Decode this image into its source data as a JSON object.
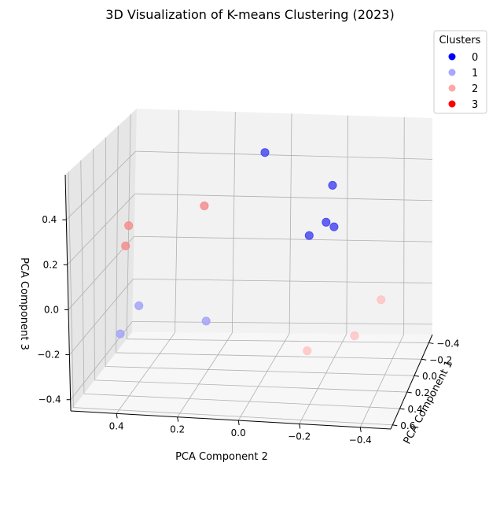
{
  "chart_data": {
    "type": "scatter",
    "title": "3D Visualization of K-means Clustering (2023)",
    "xlabel": "PCA Component 1",
    "ylabel": "PCA Component 2",
    "zlabel": "PCA Component 3",
    "x_ticks": [
      "−0.4",
      "−0.2",
      "0.0",
      "0.2",
      "0.4",
      "0.6"
    ],
    "y_ticks": [
      "−0.4",
      "−0.2",
      "0.0",
      "0.2",
      "0.4"
    ],
    "z_ticks": [
      "−0.4",
      "−0.2",
      "0.0",
      "0.2",
      "0.4"
    ],
    "xlim": [
      -0.5,
      0.65
    ],
    "ylim": [
      -0.5,
      0.55
    ],
    "zlim": [
      -0.45,
      0.6
    ],
    "grid": true,
    "legend": {
      "title": "Clusters",
      "position": "top-right",
      "entries": [
        {
          "label": "0",
          "color": "#0000ff"
        },
        {
          "label": "1",
          "color": "#a8a8ff"
        },
        {
          "label": "2",
          "color": "#ffa8a8"
        },
        {
          "label": "3",
          "color": "#ff0000"
        }
      ]
    },
    "series": [
      {
        "name": "0",
        "color": "#4a4af2",
        "points": [
          {
            "x": -0.25,
            "y": 0.05,
            "z": 0.5
          },
          {
            "x": -0.15,
            "y": -0.2,
            "z": 0.4
          },
          {
            "x": 0.0,
            "y": -0.2,
            "z": 0.28
          },
          {
            "x": -0.05,
            "y": -0.22,
            "z": 0.24
          },
          {
            "x": 0.05,
            "y": -0.15,
            "z": 0.23
          }
        ]
      },
      {
        "name": "1",
        "color": "#a4a4f8",
        "points": [
          {
            "x": 0.35,
            "y": 0.15,
            "z": -0.1
          },
          {
            "x": 0.2,
            "y": 0.4,
            "z": -0.1
          },
          {
            "x": 0.55,
            "y": 0.4,
            "z": -0.12
          }
        ]
      },
      {
        "name": "2",
        "color": "#ffc4c4",
        "points": [
          {
            "x": 0.4,
            "y": -0.35,
            "z": -0.1
          },
          {
            "x": 0.1,
            "y": -0.4,
            "z": -0.04
          },
          {
            "x": 0.45,
            "y": -0.2,
            "z": -0.17
          }
        ]
      },
      {
        "name": "3",
        "color": "#f58e8e",
        "points": [
          {
            "x": -0.2,
            "y": 0.25,
            "z": 0.25
          },
          {
            "x": -0.4,
            "y": 0.55,
            "z": 0.08
          },
          {
            "x": -0.35,
            "y": 0.55,
            "z": 0.0
          }
        ]
      }
    ]
  }
}
